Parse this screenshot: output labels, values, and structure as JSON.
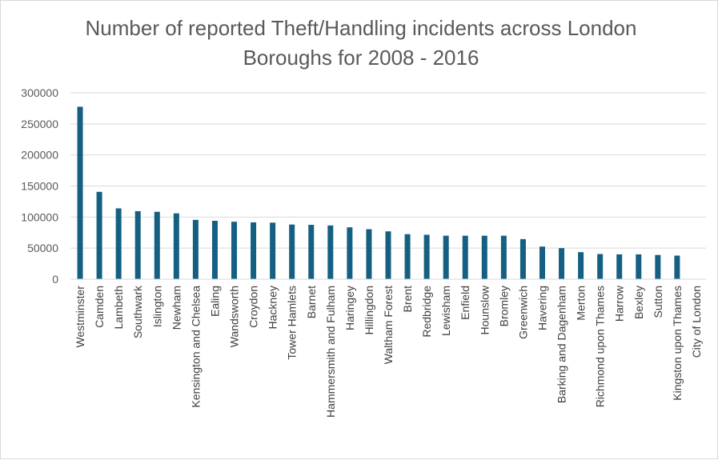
{
  "chart_data": {
    "type": "bar",
    "title": "Number of reported Theft/Handling incidents across London Boroughs for 2008 - 2016",
    "title_lines": [
      "Number of reported Theft/Handling incidents across London",
      "Boroughs for 2008 - 2016"
    ],
    "xlabel": "",
    "ylabel": "",
    "ylim": [
      0,
      300000
    ],
    "yticks": [
      0,
      50000,
      100000,
      150000,
      200000,
      250000,
      300000
    ],
    "ytick_labels": [
      "0",
      "50000",
      "100000",
      "150000",
      "200000",
      "250000",
      "300000"
    ],
    "grid": true,
    "bar_color": "#156082",
    "categories": [
      "Westminster",
      "Camden",
      "Lambeth",
      "Southwark",
      "Islington",
      "Newham",
      "Kensington and Chelsea",
      "Ealing",
      "Wandsworth",
      "Croydon",
      "Hackney",
      "Tower Hamlets",
      "Barnet",
      "Hammersmith and Fulham",
      "Haringey",
      "Hillingdon",
      "Waltham Forest",
      "Brent",
      "Redbridge",
      "Lewisham",
      "Enfield",
      "Hounslow",
      "Bromley",
      "Greenwich",
      "Havering",
      "Barking and Dagenham",
      "Merton",
      "Richmond upon Thames",
      "Harrow",
      "Bexley",
      "Sutton",
      "Kingston upon Thames",
      "City of London"
    ],
    "values": [
      277600,
      140600,
      114000,
      109500,
      108500,
      106000,
      95500,
      94000,
      92500,
      91500,
      91000,
      88000,
      87500,
      86500,
      83500,
      80500,
      77000,
      72500,
      71500,
      70000,
      70000,
      70000,
      70000,
      64500,
      52500,
      50000,
      43500,
      40500,
      40000,
      40000,
      39000,
      38000,
      700
    ]
  }
}
